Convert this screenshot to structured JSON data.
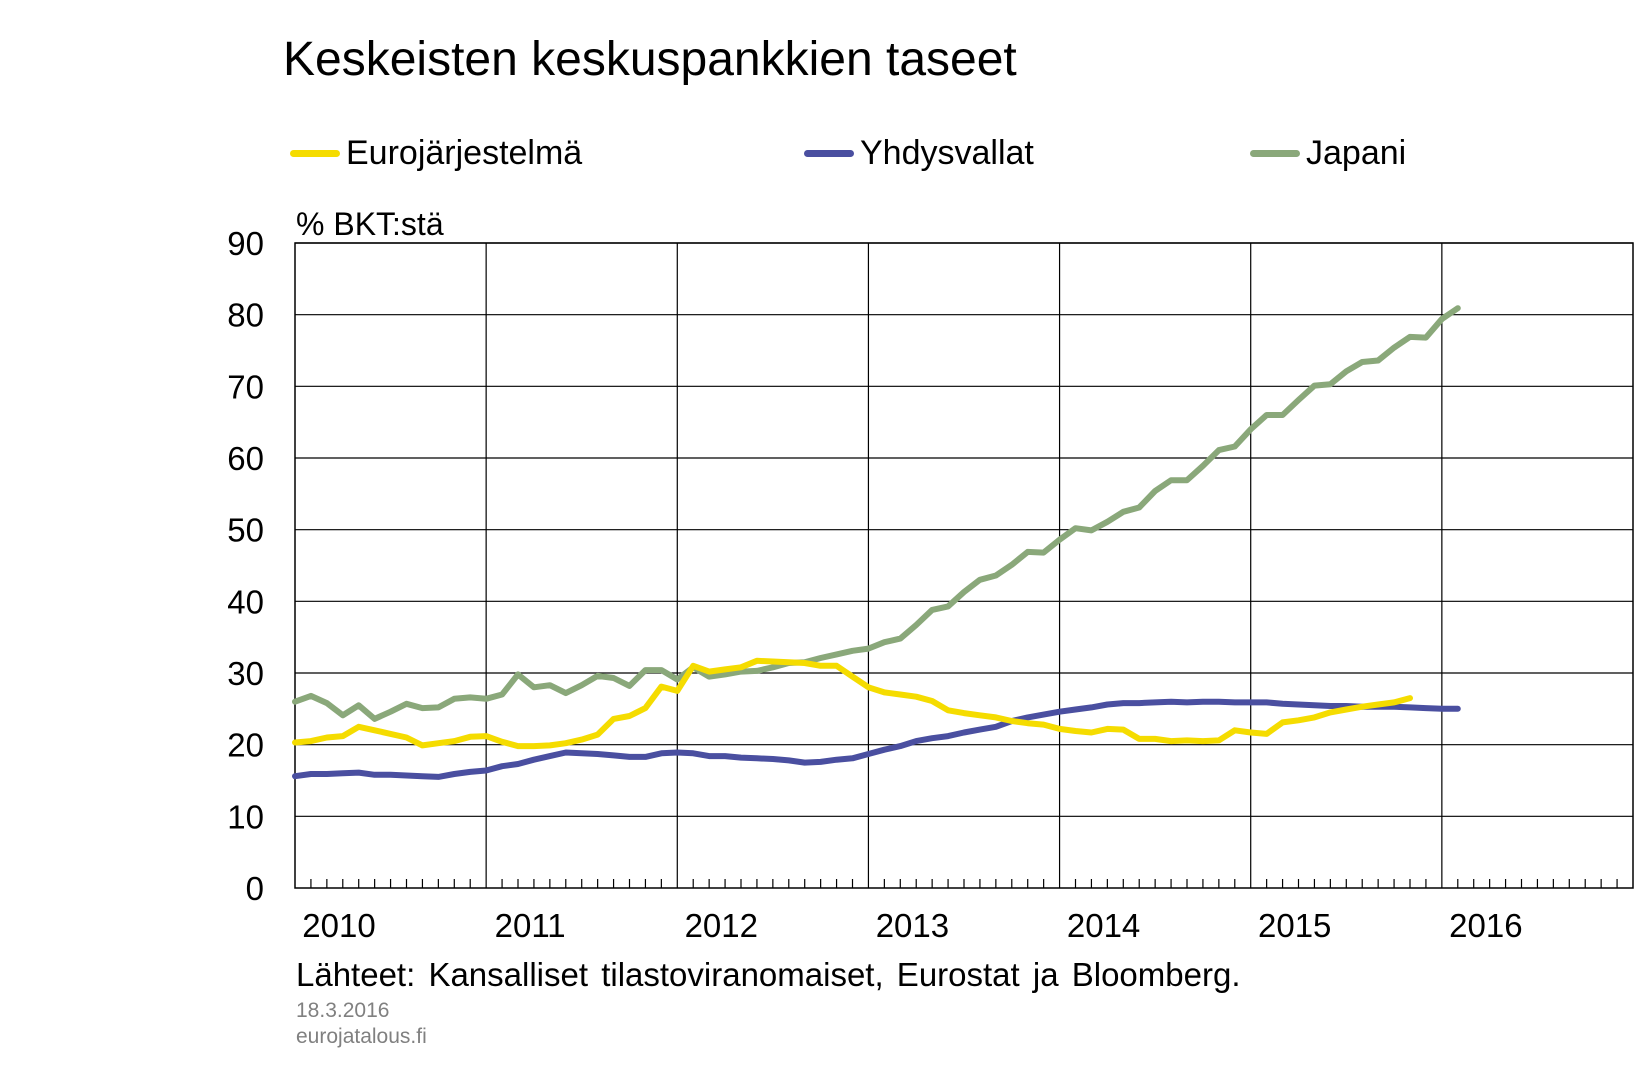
{
  "title": "Keskeisten keskuspankkien taseet",
  "unit_label": "% BKT:stä",
  "source": "Lähteet: Kansalliset tilastoviranomaiset,  Eurostat ja Bloomberg.",
  "date": "18.3.2016",
  "site": "eurojatalous.fi",
  "legend": [
    {
      "label": "Eurojärjestelmä",
      "color": "#F5DC00"
    },
    {
      "label": "Yhdysvallat",
      "color": "#4A4FA0"
    },
    {
      "label": "Japani",
      "color": "#8AA87A"
    }
  ],
  "chart_data": {
    "type": "line",
    "title": "Keskeisten keskuspankkien taseet",
    "ylabel": "% BKT:stä",
    "xlabel": "",
    "ylim": [
      0,
      90
    ],
    "yticks": [
      0,
      10,
      20,
      30,
      40,
      50,
      60,
      70,
      80,
      90
    ],
    "xlim": [
      2010,
      2017
    ],
    "xticks": [
      "2010",
      "2011",
      "2012",
      "2013",
      "2014",
      "2015",
      "2016"
    ],
    "grid": true,
    "legend_position": "top",
    "x_start": "2010-01",
    "x_frequency": "monthly",
    "series": [
      {
        "name": "Eurojärjestelmä",
        "color": "#F5DC00",
        "values": [
          20.3,
          20.5,
          21.0,
          21.2,
          22.5,
          22.0,
          21.5,
          21.0,
          19.9,
          20.2,
          20.5,
          21.1,
          21.2,
          20.4,
          19.8,
          19.8,
          19.9,
          20.2,
          20.7,
          21.4,
          23.6,
          24.0,
          25.1,
          28.1,
          27.5,
          31.0,
          30.2,
          30.5,
          30.8,
          31.7,
          31.6,
          31.5,
          31.4,
          31.0,
          31.0,
          29.5,
          28.0,
          27.3,
          27.0,
          26.7,
          26.1,
          24.8,
          24.4,
          24.1,
          23.8,
          23.3,
          23.0,
          22.8,
          22.2,
          21.9,
          21.7,
          22.2,
          22.1,
          20.8,
          20.8,
          20.5,
          20.6,
          20.5,
          20.6,
          22.0,
          21.7,
          21.5,
          23.1,
          23.4,
          23.8,
          24.5,
          24.9,
          25.3,
          25.6,
          25.9,
          26.5
        ]
      },
      {
        "name": "Yhdysvallat",
        "color": "#4A4FA0",
        "values": [
          15.6,
          15.9,
          15.9,
          16.0,
          16.1,
          15.8,
          15.8,
          15.7,
          15.6,
          15.5,
          15.9,
          16.2,
          16.4,
          17.0,
          17.3,
          17.9,
          18.4,
          18.9,
          18.8,
          18.7,
          18.5,
          18.3,
          18.3,
          18.8,
          18.9,
          18.8,
          18.4,
          18.4,
          18.2,
          18.1,
          18.0,
          17.8,
          17.5,
          17.6,
          17.9,
          18.1,
          18.7,
          19.3,
          19.8,
          20.5,
          20.9,
          21.2,
          21.7,
          22.1,
          22.5,
          23.3,
          23.8,
          24.2,
          24.6,
          24.9,
          25.2,
          25.6,
          25.8,
          25.8,
          25.9,
          26.0,
          25.9,
          26.0,
          26.0,
          25.9,
          25.9,
          25.9,
          25.7,
          25.6,
          25.5,
          25.4,
          25.4,
          25.3,
          25.3,
          25.3,
          25.2,
          25.1,
          25.0,
          25.0
        ]
      },
      {
        "name": "Japani",
        "color": "#8AA87A",
        "values": [
          26.0,
          26.8,
          25.8,
          24.1,
          25.5,
          23.6,
          24.6,
          25.7,
          25.1,
          25.2,
          26.4,
          26.6,
          26.4,
          27.0,
          29.8,
          28.0,
          28.3,
          27.2,
          28.3,
          29.6,
          29.3,
          28.2,
          30.4,
          30.4,
          29.1,
          30.8,
          29.5,
          29.8,
          30.2,
          30.3,
          30.8,
          31.4,
          31.5,
          32.1,
          32.6,
          33.1,
          33.4,
          34.3,
          34.8,
          36.7,
          38.8,
          39.3,
          41.3,
          43.0,
          43.6,
          45.1,
          46.9,
          46.8,
          48.6,
          50.2,
          49.9,
          51.1,
          52.5,
          53.1,
          55.4,
          56.9,
          56.9,
          58.9,
          61.1,
          61.6,
          64.0,
          66.0,
          66.0,
          68.1,
          70.1,
          70.3,
          72.1,
          73.4,
          73.6,
          75.4,
          76.9,
          76.8,
          79.4,
          80.9
        ]
      }
    ]
  }
}
